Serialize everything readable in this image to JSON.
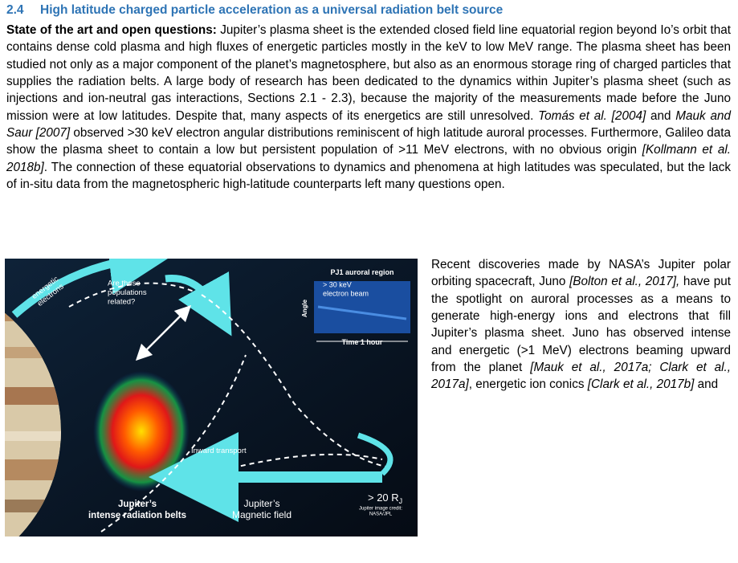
{
  "header": {
    "number": "2.4",
    "title": "High latitude charged particle acceleration as a universal radiation belt source"
  },
  "paragraph": {
    "runs": [
      {
        "text": "State of the art and open questions:",
        "style": "bold"
      },
      {
        "text": " Jupiter’s plasma sheet is the extended closed field line equatorial region beyond Io’s orbit that contains dense cold plasma and high fluxes of energetic particles mostly in the keV to low MeV range. The plasma sheet has been studied not only as a major component of the planet’s magnetosphere, but also as an enormous storage ring of charged particles that supplies the radiation belts. A large body of research has been dedicated to the dynamics within Jupiter’s plasma sheet (such as injections and ion-neutral gas interactions, Sections 2.1 - 2.3), because the majority of the measurements made before the Juno mission were at low latitudes. Despite that, many aspects of its energetics are still unresolved. ",
        "style": "normal"
      },
      {
        "text": "Tomás et al. [2004]",
        "style": "italic"
      },
      {
        "text": " and ",
        "style": "normal"
      },
      {
        "text": "Mauk and Saur [2007]",
        "style": "italic"
      },
      {
        "text": " observed >30 keV electron angular distributions reminiscent of high latitude auroral processes. Furthermore, Galileo data show the plasma sheet to contain a low but persistent population of >11 MeV electrons, with no obvious origin ",
        "style": "normal"
      },
      {
        "text": "[Kollmann et al. 2018b]",
        "style": "italic"
      },
      {
        "text": ". The connection of these equatorial observations to dynamics and phenomena at high latitudes was speculated, but the lack of in-situ data from the magnetospheric high-latitude counterparts left many questions open.",
        "style": "normal"
      }
    ]
  },
  "figure": {
    "labels": {
      "inset_title": "PJ1 auroral region",
      "inset_beam": "> 30 keV electron beam",
      "inset_angle": "Angle",
      "inset_time": "Time 1 hour",
      "question": "Are these populations related?",
      "electrons": "energetic electrons",
      "transport": "Inward transport",
      "distance": "> 20 R",
      "distance_sub": "J",
      "belts": "Jupiter’s intense radiation belts",
      "field": "Jupiter’s Magnetic field",
      "credit": "Jupiter image credit: NASA/JPL"
    }
  },
  "side_text": {
    "runs": [
      {
        "text": "Recent discoveries made by NASA’s Jupiter polar orbiting spacecraft, Juno ",
        "style": "normal"
      },
      {
        "text": "[Bolton et al., 2017],",
        "style": "italic"
      },
      {
        "text": " have put the spotlight on auroral processes as a means to generate high-energy ions and electrons that fill Jupiter’s plasma sheet. Juno has observed intense and energetic (>1 MeV) electrons beaming upward from the planet ",
        "style": "normal"
      },
      {
        "text": "[Mauk et al., 2017a; Clark et al., 2017a]",
        "style": "italic"
      },
      {
        "text": ", energetic ion conics ",
        "style": "normal"
      },
      {
        "text": "[Clark et al., 2017b]",
        "style": "italic"
      },
      {
        "text": " and",
        "style": "normal"
      }
    ]
  }
}
